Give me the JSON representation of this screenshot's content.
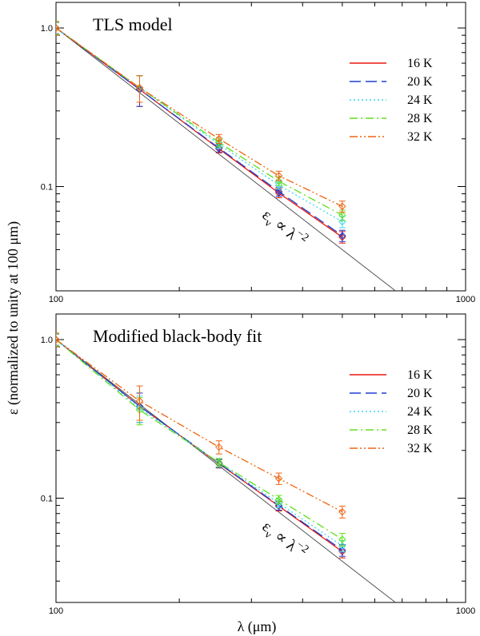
{
  "figure": {
    "ylabel": "ε (normalized to unity at 100 μm)",
    "xlabel": "λ (μm)"
  },
  "chart_data": [
    {
      "type": "line",
      "title": "TLS model",
      "xscale": "log",
      "yscale": "log",
      "xlim": [
        100,
        1000
      ],
      "ylim": [
        0.022,
        1.45
      ],
      "xticks": [
        {
          "value": 100,
          "label": "100"
        },
        {
          "value": 1000,
          "label": "1000"
        }
      ],
      "yticks": [
        {
          "value": 1.0,
          "label": "1.0"
        },
        {
          "value": 0.1,
          "label": "0.1"
        }
      ],
      "reference_line": {
        "label": "ε",
        "sub": "ν",
        "prop": " ∝ λ",
        "sup": "−2",
        "x": [
          100,
          1000
        ],
        "y": [
          1.0,
          0.01
        ]
      },
      "legend_position": "top-right",
      "x": [
        100,
        160,
        250,
        350,
        500
      ],
      "series": [
        {
          "name": "16 K",
          "color": "#e8190f",
          "dash": "",
          "values": [
            1.0,
            0.41,
            0.173,
            0.091,
            0.048
          ],
          "errors": [
            0.08,
            0.09,
            0.01,
            0.006,
            0.004
          ]
        },
        {
          "name": "20 K",
          "color": "#1f3fd0",
          "dash": "14,6",
          "values": [
            1.0,
            0.41,
            0.175,
            0.093,
            0.049
          ],
          "errors": [
            0.08,
            0.09,
            0.01,
            0.006,
            0.004
          ]
        },
        {
          "name": "24 K",
          "color": "#3fd6f0",
          "dash": "2,3",
          "values": [
            1.0,
            0.42,
            0.185,
            0.102,
            0.06
          ],
          "errors": [
            0.08,
            0.08,
            0.011,
            0.006,
            0.005
          ]
        },
        {
          "name": "28 K",
          "color": "#5ee01a",
          "dash": "10,4,2,4",
          "values": [
            1.0,
            0.42,
            0.19,
            0.108,
            0.066
          ],
          "errors": [
            0.09,
            0.08,
            0.012,
            0.007,
            0.005
          ]
        },
        {
          "name": "32 K",
          "color": "#f06410",
          "dash": "10,3,2,3,2,3",
          "values": [
            1.0,
            0.42,
            0.2,
            0.117,
            0.075
          ],
          "errors": [
            0.1,
            0.08,
            0.013,
            0.008,
            0.006
          ]
        }
      ]
    },
    {
      "type": "line",
      "title": "Modified black-body fit",
      "xscale": "log",
      "yscale": "log",
      "xlim": [
        100,
        1000
      ],
      "ylim": [
        0.022,
        1.45
      ],
      "xticks": [
        {
          "value": 100,
          "label": "100"
        },
        {
          "value": 1000,
          "label": "1000"
        }
      ],
      "yticks": [
        {
          "value": 1.0,
          "label": "1.0"
        },
        {
          "value": 0.1,
          "label": "0.1"
        }
      ],
      "reference_line": {
        "label": "ε",
        "sub": "ν",
        "prop": " ∝ λ",
        "sup": "−2",
        "x": [
          100,
          1000
        ],
        "y": [
          1.0,
          0.01
        ]
      },
      "legend_position": "top-right",
      "x": [
        100,
        160,
        250,
        350,
        500
      ],
      "series": [
        {
          "name": "16 K",
          "color": "#e8190f",
          "dash": "",
          "values": [
            1.0,
            0.38,
            0.165,
            0.089,
            0.046
          ],
          "errors": [
            0.08,
            0.08,
            0.01,
            0.006,
            0.004
          ]
        },
        {
          "name": "20 K",
          "color": "#1f3fd0",
          "dash": "14,6",
          "values": [
            1.0,
            0.38,
            0.166,
            0.09,
            0.047
          ],
          "errors": [
            0.08,
            0.08,
            0.01,
            0.006,
            0.004
          ]
        },
        {
          "name": "24 K",
          "color": "#3fd6f0",
          "dash": "2,3",
          "values": [
            1.0,
            0.37,
            0.167,
            0.093,
            0.05
          ],
          "errors": [
            0.08,
            0.07,
            0.01,
            0.006,
            0.004
          ]
        },
        {
          "name": "28 K",
          "color": "#5ee01a",
          "dash": "10,4,2,4",
          "values": [
            1.0,
            0.36,
            0.168,
            0.098,
            0.055
          ],
          "errors": [
            0.09,
            0.07,
            0.01,
            0.006,
            0.005
          ]
        },
        {
          "name": "32 K",
          "color": "#f06410",
          "dash": "10,3,2,3,2,3",
          "values": [
            1.0,
            0.41,
            0.21,
            0.133,
            0.082
          ],
          "errors": [
            0.1,
            0.1,
            0.02,
            0.011,
            0.007
          ]
        }
      ]
    }
  ]
}
